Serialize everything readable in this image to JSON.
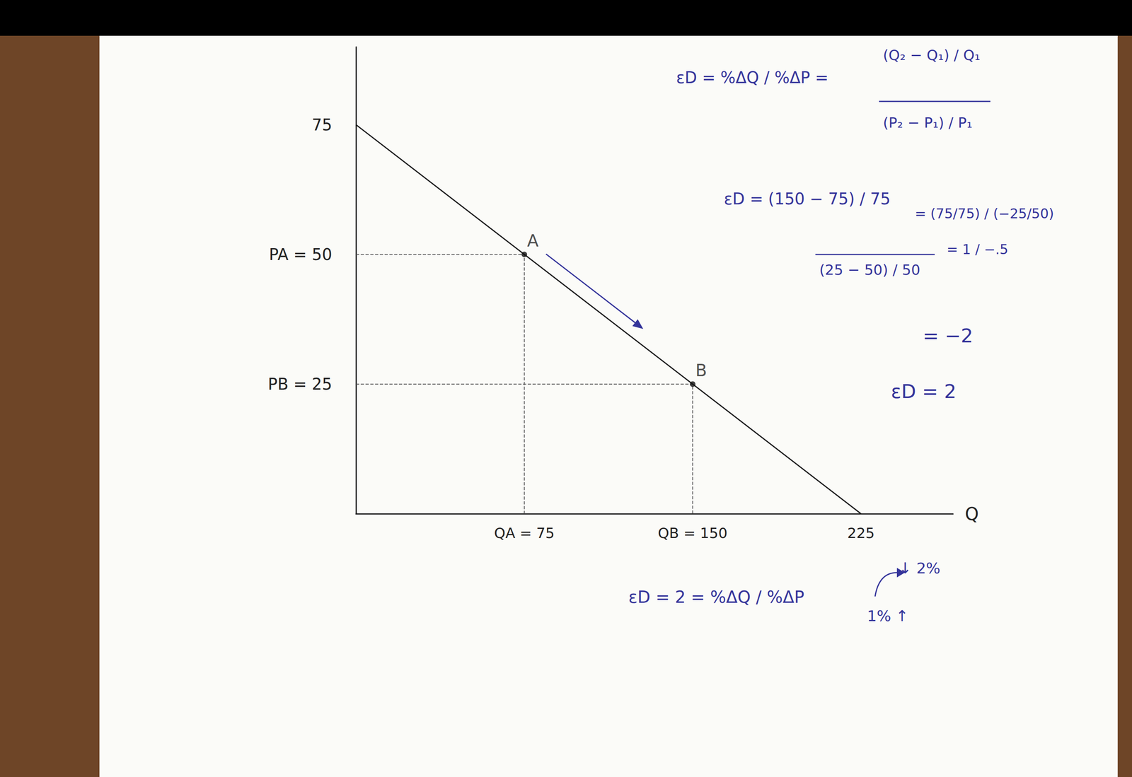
{
  "chart_data": {
    "type": "line",
    "x_label": "Q",
    "x": [
      0,
      225
    ],
    "values": [
      75,
      0
    ],
    "color": "#1e1e1e",
    "xlim": [
      0,
      266
    ],
    "ylim": [
      0,
      90
    ],
    "xticks": [
      {
        "value": 75,
        "label": "QA = 75"
      },
      {
        "value": 150,
        "label": "QB = 150"
      },
      225
    ],
    "yticks": [
      {
        "value": 25,
        "label": "PB = 25"
      },
      {
        "value": 50,
        "label": "PA = 50"
      },
      75
    ],
    "grid": false,
    "points": [
      {
        "label": "A",
        "x": 75,
        "y": 50
      },
      {
        "label": "B",
        "x": 150,
        "y": 25
      }
    ],
    "annotations": [
      "εD = %ΔQ / %ΔP =",
      "(Q₂ − Q₁) / Q₁",
      "(P₂ − P₁) / P₁",
      "εD = (150 − 75) / 75",
      "(25 − 50) / 50",
      "= (75/75) / (−25/50)",
      "= 1 / −.5",
      "= −2",
      "εD = 2",
      "εD = 2 = %ΔQ / %ΔP",
      "↓ 2%",
      "1% ↑"
    ]
  }
}
